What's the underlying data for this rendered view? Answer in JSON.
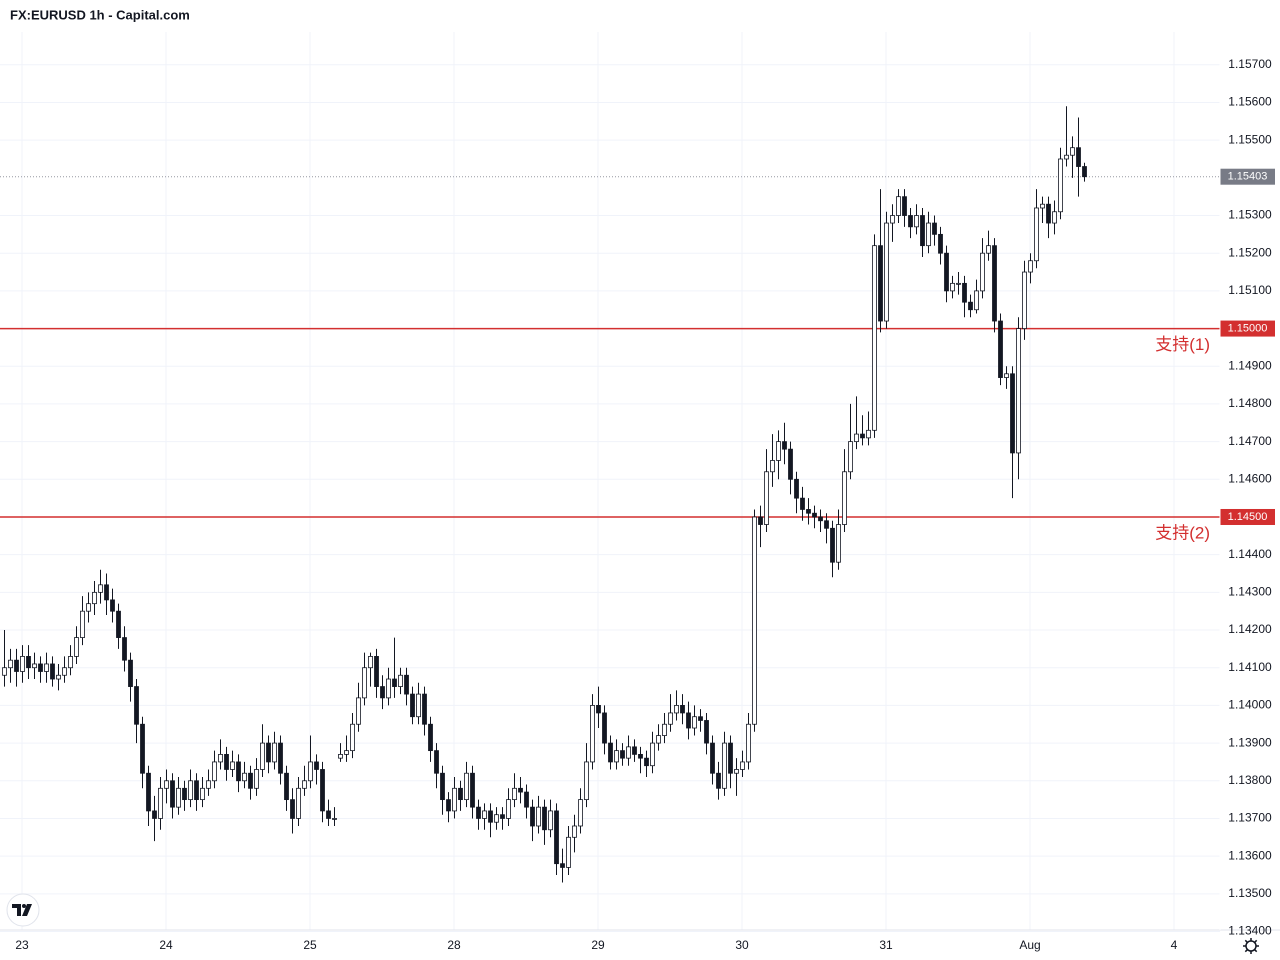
{
  "chart_data": {
    "type": "candlestick",
    "title": "FX:EURUSD 1h - Capital.com",
    "up_color": "#ffffff",
    "down_color": "#131722",
    "wick_color": "#131722",
    "level_color": "#d32f2f",
    "grid": true,
    "xlim": [
      -0.667,
      202.667
    ],
    "ylim": [
      1.13404,
      1.15787
    ],
    "xticks": [
      {
        "value": 3,
        "label": "23"
      },
      {
        "value": 27,
        "label": "24"
      },
      {
        "value": 51,
        "label": "25"
      },
      {
        "value": 75,
        "label": "28"
      },
      {
        "value": 99,
        "label": "29"
      },
      {
        "value": 123,
        "label": "30"
      },
      {
        "value": 147,
        "label": "31"
      },
      {
        "value": 171,
        "label": "Aug"
      },
      {
        "value": 195,
        "label": "4"
      }
    ],
    "yticks": [
      {
        "value": 1.134,
        "label": "1.13400"
      },
      {
        "value": 1.135,
        "label": "1.13500"
      },
      {
        "value": 1.136,
        "label": "1.13600"
      },
      {
        "value": 1.137,
        "label": "1.13700"
      },
      {
        "value": 1.138,
        "label": "1.13800"
      },
      {
        "value": 1.139,
        "label": "1.13900"
      },
      {
        "value": 1.14,
        "label": "1.14000"
      },
      {
        "value": 1.141,
        "label": "1.14100"
      },
      {
        "value": 1.142,
        "label": "1.14200"
      },
      {
        "value": 1.143,
        "label": "1.14300"
      },
      {
        "value": 1.144,
        "label": "1.14400"
      },
      {
        "value": 1.146,
        "label": "1.14600"
      },
      {
        "value": 1.147,
        "label": "1.14700"
      },
      {
        "value": 1.148,
        "label": "1.14800"
      },
      {
        "value": 1.149,
        "label": "1.14900"
      },
      {
        "value": 1.151,
        "label": "1.15100"
      },
      {
        "value": 1.152,
        "label": "1.15200"
      },
      {
        "value": 1.153,
        "label": "1.15300"
      },
      {
        "value": 1.155,
        "label": "1.15500"
      },
      {
        "value": 1.156,
        "label": "1.15600"
      },
      {
        "value": 1.157,
        "label": "1.15700"
      }
    ],
    "levels": [
      {
        "name": "支持(1)",
        "value": 1.15,
        "label": "1.15000"
      },
      {
        "name": "支持(2)",
        "value": 1.145,
        "label": "1.14500"
      }
    ],
    "last_price": {
      "value": 1.15403,
      "label": "1.15403"
    },
    "ohlc": [
      [
        1.1408,
        1.142,
        1.1405,
        1.141
      ],
      [
        1.141,
        1.1415,
        1.1406,
        1.1412
      ],
      [
        1.1412,
        1.1415,
        1.1405,
        1.1409
      ],
      [
        1.1409,
        1.1416,
        1.1406,
        1.1413
      ],
      [
        1.1413,
        1.1416,
        1.1407,
        1.141
      ],
      [
        1.141,
        1.1414,
        1.1407,
        1.1411
      ],
      [
        1.1411,
        1.1413,
        1.1406,
        1.1409
      ],
      [
        1.1409,
        1.1414,
        1.1406,
        1.1411
      ],
      [
        1.1411,
        1.1413,
        1.1405,
        1.1407
      ],
      [
        1.1407,
        1.1411,
        1.1404,
        1.1408
      ],
      [
        1.1408,
        1.1413,
        1.1406,
        1.141
      ],
      [
        1.141,
        1.1416,
        1.1408,
        1.1413
      ],
      [
        1.1413,
        1.1421,
        1.1411,
        1.1418
      ],
      [
        1.1418,
        1.1429,
        1.1416,
        1.1425
      ],
      [
        1.1425,
        1.143,
        1.1422,
        1.1427
      ],
      [
        1.1427,
        1.1433,
        1.1424,
        1.143
      ],
      [
        1.143,
        1.1436,
        1.1427,
        1.1432
      ],
      [
        1.1432,
        1.1435,
        1.1424,
        1.1428
      ],
      [
        1.1428,
        1.1431,
        1.1422,
        1.1425
      ],
      [
        1.1425,
        1.1427,
        1.1415,
        1.1418
      ],
      [
        1.1418,
        1.1421,
        1.1409,
        1.1412
      ],
      [
        1.1412,
        1.1414,
        1.1401,
        1.1405
      ],
      [
        1.1405,
        1.1407,
        1.139,
        1.1395
      ],
      [
        1.1395,
        1.1397,
        1.1378,
        1.1382
      ],
      [
        1.1382,
        1.1384,
        1.1368,
        1.1372
      ],
      [
        1.1372,
        1.1376,
        1.1364,
        1.137
      ],
      [
        1.137,
        1.1381,
        1.1367,
        1.1378
      ],
      [
        1.1378,
        1.1383,
        1.1374,
        1.138
      ],
      [
        1.138,
        1.1382,
        1.137,
        1.1373
      ],
      [
        1.1373,
        1.1381,
        1.1371,
        1.1378
      ],
      [
        1.1378,
        1.138,
        1.1372,
        1.1375
      ],
      [
        1.1375,
        1.1383,
        1.1373,
        1.138
      ],
      [
        1.138,
        1.1382,
        1.1372,
        1.1375
      ],
      [
        1.1375,
        1.1381,
        1.1373,
        1.1378
      ],
      [
        1.1378,
        1.1383,
        1.1376,
        1.138
      ],
      [
        1.138,
        1.1388,
        1.1378,
        1.1385
      ],
      [
        1.1385,
        1.1391,
        1.1383,
        1.1387
      ],
      [
        1.1387,
        1.1389,
        1.138,
        1.1383
      ],
      [
        1.1383,
        1.1388,
        1.1381,
        1.1385
      ],
      [
        1.1385,
        1.1387,
        1.1377,
        1.138
      ],
      [
        1.138,
        1.1385,
        1.1378,
        1.1382
      ],
      [
        1.1382,
        1.1384,
        1.1375,
        1.1378
      ],
      [
        1.1378,
        1.1386,
        1.1376,
        1.1383
      ],
      [
        1.1383,
        1.1395,
        1.1381,
        1.139
      ],
      [
        1.139,
        1.1392,
        1.1382,
        1.1385
      ],
      [
        1.1385,
        1.1393,
        1.1383,
        1.139
      ],
      [
        1.139,
        1.1392,
        1.1379,
        1.1382
      ],
      [
        1.1382,
        1.1384,
        1.1372,
        1.1375
      ],
      [
        1.1375,
        1.1378,
        1.1366,
        1.137
      ],
      [
        1.137,
        1.1381,
        1.1368,
        1.1378
      ],
      [
        1.1378,
        1.1384,
        1.1376,
        1.138
      ],
      [
        1.138,
        1.1392,
        1.1378,
        1.1385
      ],
      [
        1.1385,
        1.1387,
        1.1379,
        1.1383
      ],
      [
        1.1383,
        1.1385,
        1.1369,
        1.1372
      ],
      [
        1.1372,
        1.1375,
        1.1368,
        1.137
      ],
      [
        1.137,
        1.1373,
        1.1368,
        1.137
      ],
      [
        1.1386,
        1.139,
        1.1385,
        1.1387
      ],
      [
        1.1387,
        1.1392,
        1.1385,
        1.1388
      ],
      [
        1.1388,
        1.1398,
        1.1386,
        1.1395
      ],
      [
        1.1395,
        1.1406,
        1.1393,
        1.1402
      ],
      [
        1.1402,
        1.1414,
        1.14,
        1.141
      ],
      [
        1.141,
        1.1414,
        1.1405,
        1.1413
      ],
      [
        1.1413,
        1.1415,
        1.1402,
        1.1405
      ],
      [
        1.1405,
        1.1408,
        1.1399,
        1.1402
      ],
      [
        1.1402,
        1.141,
        1.14,
        1.1407
      ],
      [
        1.1407,
        1.1418,
        1.1402,
        1.1405
      ],
      [
        1.1405,
        1.141,
        1.1403,
        1.1408
      ],
      [
        1.1408,
        1.141,
        1.14,
        1.1403
      ],
      [
        1.1403,
        1.1405,
        1.1395,
        1.1397
      ],
      [
        1.1397,
        1.1406,
        1.1395,
        1.1403
      ],
      [
        1.1403,
        1.1405,
        1.1392,
        1.1395
      ],
      [
        1.1395,
        1.1397,
        1.1385,
        1.1388
      ],
      [
        1.1388,
        1.139,
        1.1378,
        1.1382
      ],
      [
        1.1382,
        1.1384,
        1.1371,
        1.1375
      ],
      [
        1.1375,
        1.1377,
        1.1369,
        1.1372
      ],
      [
        1.1372,
        1.1381,
        1.137,
        1.1378
      ],
      [
        1.1378,
        1.138,
        1.1372,
        1.1375
      ],
      [
        1.1375,
        1.1385,
        1.1373,
        1.1382
      ],
      [
        1.1382,
        1.1384,
        1.137,
        1.1373
      ],
      [
        1.1373,
        1.1375,
        1.1367,
        1.137
      ],
      [
        1.137,
        1.1374,
        1.1367,
        1.1372
      ],
      [
        1.1372,
        1.1374,
        1.1365,
        1.1369
      ],
      [
        1.1369,
        1.1373,
        1.1367,
        1.1371
      ],
      [
        1.1371,
        1.1373,
        1.1367,
        1.137
      ],
      [
        1.137,
        1.1378,
        1.1368,
        1.1375
      ],
      [
        1.1375,
        1.1382,
        1.1373,
        1.1378
      ],
      [
        1.1378,
        1.1381,
        1.1374,
        1.1377
      ],
      [
        1.1377,
        1.1379,
        1.137,
        1.1373
      ],
      [
        1.1373,
        1.1375,
        1.1364,
        1.1368
      ],
      [
        1.1368,
        1.1376,
        1.1366,
        1.1373
      ],
      [
        1.1373,
        1.1375,
        1.1363,
        1.1367
      ],
      [
        1.1367,
        1.1375,
        1.1365,
        1.1372
      ],
      [
        1.1372,
        1.1374,
        1.1355,
        1.1358
      ],
      [
        1.1358,
        1.1362,
        1.1353,
        1.1357
      ],
      [
        1.1357,
        1.1368,
        1.1355,
        1.1365
      ],
      [
        1.1365,
        1.1371,
        1.1361,
        1.1368
      ],
      [
        1.1368,
        1.1378,
        1.1366,
        1.1375
      ],
      [
        1.1375,
        1.139,
        1.1373,
        1.1385
      ],
      [
        1.1385,
        1.1403,
        1.1383,
        1.14
      ],
      [
        1.14,
        1.1405,
        1.1394,
        1.1398
      ],
      [
        1.1398,
        1.14,
        1.1387,
        1.139
      ],
      [
        1.139,
        1.1392,
        1.1383,
        1.1385
      ],
      [
        1.1385,
        1.1391,
        1.1383,
        1.1388
      ],
      [
        1.1388,
        1.139,
        1.1384,
        1.1386
      ],
      [
        1.1386,
        1.1392,
        1.1384,
        1.1389
      ],
      [
        1.1389,
        1.1391,
        1.1385,
        1.1387
      ],
      [
        1.1387,
        1.1389,
        1.1382,
        1.1386
      ],
      [
        1.1386,
        1.1388,
        1.1381,
        1.1384
      ],
      [
        1.1384,
        1.1393,
        1.1382,
        1.139
      ],
      [
        1.139,
        1.1395,
        1.1388,
        1.1392
      ],
      [
        1.1392,
        1.1398,
        1.139,
        1.1395
      ],
      [
        1.1395,
        1.1403,
        1.1393,
        1.1398
      ],
      [
        1.1398,
        1.1404,
        1.1396,
        1.14
      ],
      [
        1.14,
        1.1403,
        1.1395,
        1.1398
      ],
      [
        1.1398,
        1.1401,
        1.1391,
        1.1394
      ],
      [
        1.1394,
        1.14,
        1.1392,
        1.1397
      ],
      [
        1.1397,
        1.1399,
        1.1393,
        1.1396
      ],
      [
        1.1396,
        1.1398,
        1.1387,
        1.139
      ],
      [
        1.139,
        1.1392,
        1.1379,
        1.1382
      ],
      [
        1.1382,
        1.1385,
        1.1375,
        1.1378
      ],
      [
        1.1378,
        1.1393,
        1.1376,
        1.139
      ],
      [
        1.139,
        1.1392,
        1.1378,
        1.1382
      ],
      [
        1.1382,
        1.1386,
        1.1376,
        1.1383
      ],
      [
        1.1383,
        1.1388,
        1.1381,
        1.1385
      ],
      [
        1.1385,
        1.1398,
        1.1383,
        1.1395
      ],
      [
        1.1395,
        1.1452,
        1.1393,
        1.145
      ],
      [
        1.145,
        1.1453,
        1.1442,
        1.1448
      ],
      [
        1.1448,
        1.1468,
        1.1446,
        1.1462
      ],
      [
        1.1462,
        1.1472,
        1.1458,
        1.1465
      ],
      [
        1.1465,
        1.1473,
        1.146,
        1.147
      ],
      [
        1.147,
        1.1475,
        1.1464,
        1.1468
      ],
      [
        1.1468,
        1.147,
        1.1456,
        1.146
      ],
      [
        1.146,
        1.1462,
        1.1451,
        1.1455
      ],
      [
        1.1455,
        1.1458,
        1.1449,
        1.1452
      ],
      [
        1.1452,
        1.1455,
        1.1448,
        1.1451
      ],
      [
        1.1451,
        1.1453,
        1.1447,
        1.145
      ],
      [
        1.145,
        1.1452,
        1.1446,
        1.1449
      ],
      [
        1.1449,
        1.1451,
        1.1443,
        1.1447
      ],
      [
        1.1447,
        1.1449,
        1.1434,
        1.1438
      ],
      [
        1.1438,
        1.1452,
        1.1436,
        1.1448
      ],
      [
        1.1448,
        1.1468,
        1.1446,
        1.1462
      ],
      [
        1.1462,
        1.148,
        1.146,
        1.147
      ],
      [
        1.147,
        1.1482,
        1.1468,
        1.1472
      ],
      [
        1.1472,
        1.1477,
        1.1469,
        1.1471
      ],
      [
        1.1471,
        1.1478,
        1.1469,
        1.1473
      ],
      [
        1.1473,
        1.1525,
        1.1471,
        1.1522
      ],
      [
        1.1522,
        1.1537,
        1.1499,
        1.1502
      ],
      [
        1.1502,
        1.1531,
        1.15,
        1.1528
      ],
      [
        1.1528,
        1.1533,
        1.1523,
        1.153
      ],
      [
        1.153,
        1.1537,
        1.1528,
        1.1535
      ],
      [
        1.1535,
        1.1537,
        1.1527,
        1.153
      ],
      [
        1.153,
        1.1532,
        1.1524,
        1.1527
      ],
      [
        1.1527,
        1.1533,
        1.1525,
        1.153
      ],
      [
        1.153,
        1.1532,
        1.1519,
        1.1522
      ],
      [
        1.1522,
        1.1531,
        1.152,
        1.1528
      ],
      [
        1.1528,
        1.153,
        1.1522,
        1.1525
      ],
      [
        1.1525,
        1.1527,
        1.1517,
        1.152
      ],
      [
        1.152,
        1.1522,
        1.1507,
        1.151
      ],
      [
        1.151,
        1.1514,
        1.1508,
        1.1512
      ],
      [
        1.1512,
        1.1515,
        1.1509,
        1.1512
      ],
      [
        1.1512,
        1.1514,
        1.1503,
        1.1507
      ],
      [
        1.1507,
        1.1509,
        1.1503,
        1.1505
      ],
      [
        1.1505,
        1.1513,
        1.1504,
        1.151
      ],
      [
        1.151,
        1.1524,
        1.1508,
        1.152
      ],
      [
        1.152,
        1.1526,
        1.1518,
        1.1522
      ],
      [
        1.1522,
        1.1524,
        1.1499,
        1.1502
      ],
      [
        1.1502,
        1.1504,
        1.1485,
        1.1487
      ],
      [
        1.1487,
        1.149,
        1.1484,
        1.1488
      ],
      [
        1.1488,
        1.149,
        1.1455,
        1.1467
      ],
      [
        1.1467,
        1.1503,
        1.146,
        1.15
      ],
      [
        1.15,
        1.1518,
        1.1497,
        1.1515
      ],
      [
        1.1515,
        1.152,
        1.1512,
        1.1518
      ],
      [
        1.1518,
        1.1537,
        1.1516,
        1.1532
      ],
      [
        1.1532,
        1.1535,
        1.1528,
        1.1533
      ],
      [
        1.1533,
        1.1535,
        1.1524,
        1.1528
      ],
      [
        1.1528,
        1.1534,
        1.1525,
        1.1531
      ],
      [
        1.1531,
        1.1548,
        1.1529,
        1.1545
      ],
      [
        1.1545,
        1.1559,
        1.1543,
        1.1546
      ],
      [
        1.1546,
        1.1551,
        1.154,
        1.1548
      ],
      [
        1.1548,
        1.1556,
        1.1535,
        1.1543
      ],
      [
        1.1543,
        1.1544,
        1.1539,
        1.15403
      ]
    ]
  }
}
